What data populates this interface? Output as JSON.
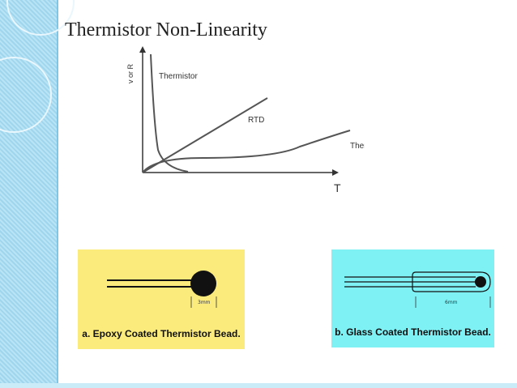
{
  "slide": {
    "title": "Thermistor Non-Linearity"
  },
  "graph": {
    "y_axis_label": "v or R",
    "x_axis_label": "T",
    "curves": [
      "Thermistor",
      "RTD",
      "Thermocouple"
    ]
  },
  "beads": [
    {
      "caption": "a.  Epoxy Coated Thermistor Bead.",
      "dimension": "3mm",
      "background": "#fbeb7c"
    },
    {
      "caption": "b.  Glass Coated Thermistor Bead.",
      "dimension": "6mm",
      "background": "#7ef1f5"
    }
  ]
}
